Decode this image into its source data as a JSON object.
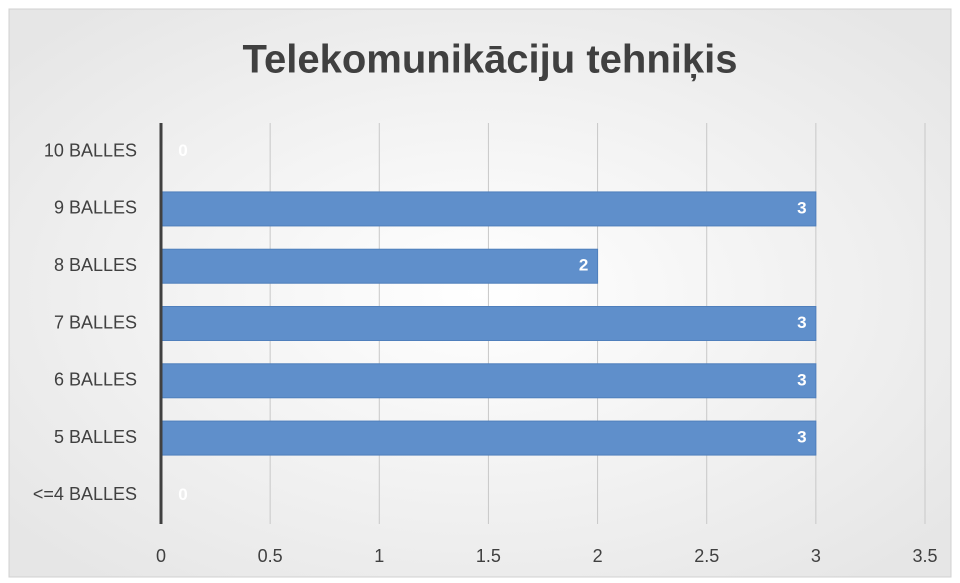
{
  "chart_data": {
    "type": "bar",
    "orientation": "horizontal",
    "title": "Telekomunikāciju tehniķis",
    "categories": [
      "10 BALLES",
      "9 BALLES",
      "8 BALLES",
      "7 BALLES",
      "6 BALLES",
      "5 BALLES",
      "<=4 BALLES"
    ],
    "values": [
      0,
      3,
      2,
      3,
      3,
      3,
      0
    ],
    "color": "#5f8fcb",
    "xlim": [
      0,
      3.5
    ],
    "xticks": [
      0,
      0.5,
      1,
      1.5,
      2,
      2.5,
      3,
      3.5
    ],
    "grid": true
  }
}
